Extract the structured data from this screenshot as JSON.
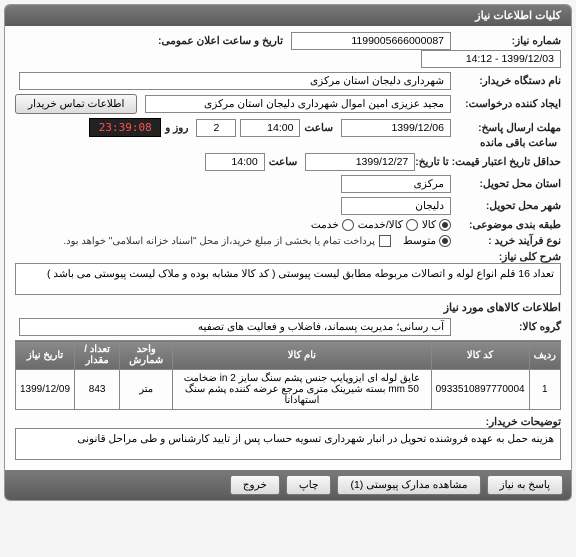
{
  "panel_title": "کلیات اطلاعات نیاز",
  "fields": {
    "need_no_label": "شماره نیاز:",
    "need_no": "1199005666000087",
    "announce_label": "تاریخ و ساعت اعلان عمومی:",
    "announce": "1399/12/03 - 14:12",
    "buyer_org_label": "نام دستگاه خریدار:",
    "buyer_org": "شهرداری دلیجان استان مرکزی",
    "creator_label": "ایجاد کننده درخواست:",
    "creator": "مجید عزیزی امین اموال شهرداری دلیجان استان مرکزی",
    "buyer_contact_label": "اطلاعات تماس خریدار",
    "reply_deadline_label": "مهلت ارسال پاسخ:",
    "reply_date": "1399/12/06",
    "time_label": "ساعت",
    "reply_time": "14:00",
    "days_left": "2",
    "days_label": "روز و",
    "countdown": "23:39:08",
    "remaining_label": "ساعت باقی مانده",
    "price_validity_label": "حداقل تاریخ اعتبار قیمت: تا تاریخ:",
    "price_validity_date": "1399/12/27",
    "price_validity_time": "14:00",
    "delivery_province_label": "استان محل تحویل:",
    "delivery_province": "مرکزی",
    "delivery_city_label": "شهر محل تحویل:",
    "delivery_city": "دلیجان",
    "budget_class_label": "طبقه بندی موضوعی:",
    "budget_goods": "کالا",
    "budget_goods_service": "کالا/خدمت",
    "budget_service": "خدمت",
    "buy_process_label": "نوع فرآیند خرید :",
    "buy_small": "متوسط",
    "partial_pay_label": "پرداخت تمام یا بخشی از مبلغ خرید،از محل \"اسناد خزانه اسلامی\" خواهد بود.",
    "main_desc_label": "شرح کلی نیاز:",
    "main_desc": "تعداد 16 قلم انواع لوله و اتصالات مربوطه مطابق لیست پیوستی ( کد کالا مشابه بوده و ملاک لیست پیوستی می باشد )",
    "items_header": "اطلاعات کالاهای مورد نیاز",
    "item_group_label": "گروه کالا:",
    "item_group": "آب رسانی؛ مدیریت پسماند، فاضلاب و فعالیت های تصفیه"
  },
  "table": {
    "headers": [
      "ردیف",
      "کد کالا",
      "نام کالا",
      "واحد شمارش",
      "تعداد / مقدار",
      "تاریخ نیاز"
    ],
    "rows": [
      [
        "1",
        "0933510897770004",
        "عایق لوله ای ایزوپایپ جنس پشم سنگ سایز 2 in ضخامت 50 mm بسته شیرینک متری مرجع عرضه کننده پشم سنگ استهادانا",
        "متر",
        "843",
        "1399/12/09"
      ]
    ]
  },
  "buyer_notes_label": "توضیحات خریدار:",
  "buyer_notes": "هزینه حمل به عهده فروشنده تحویل در انبار شهرداری تسویه حساب پس از تایید کارشناس و طی مراحل قانونی",
  "footer": {
    "reply": "پاسخ به نیاز",
    "attach": "مشاهده مدارک پیوستی (1)",
    "print": "چاپ",
    "exit": "خروج"
  }
}
